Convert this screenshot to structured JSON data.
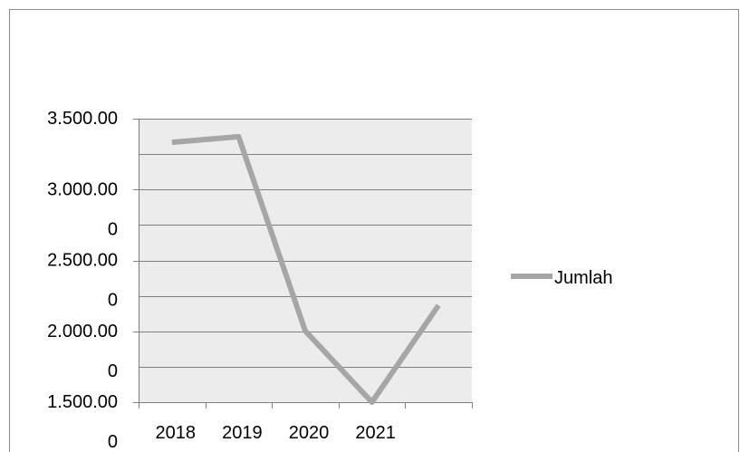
{
  "chart_data": {
    "type": "line",
    "title": "",
    "xlabel": "",
    "ylabel": "",
    "categories": [
      "2018",
      "2019",
      "2020",
      "2021",
      ""
    ],
    "series": [
      {
        "name": "Jumlah",
        "color": "#a6a6a6",
        "values": [
          3333,
          3373,
          2003,
          1500,
          2183
        ]
      }
    ],
    "ylim": [
      1500,
      3500
    ],
    "major_ticks": [
      1500,
      2000,
      2500,
      3000,
      3500
    ],
    "y_tick_labels": [
      {
        "value": 1500,
        "line1": "1.500.00",
        "line2": "0"
      },
      {
        "value": 2000,
        "line1": "2.000.00",
        "line2": "0"
      },
      {
        "value": 2500,
        "line1": "2.500.00",
        "line2": "0"
      },
      {
        "value": 3000,
        "line1": "3.000.00",
        "line2": "0"
      },
      {
        "value": 3500,
        "line1": "3.500.00",
        "line2": ""
      }
    ],
    "gridline_step": 250,
    "grid": true,
    "plot_background": "#ececec",
    "gridline_color": "#7f7f7f",
    "legend": "right"
  }
}
